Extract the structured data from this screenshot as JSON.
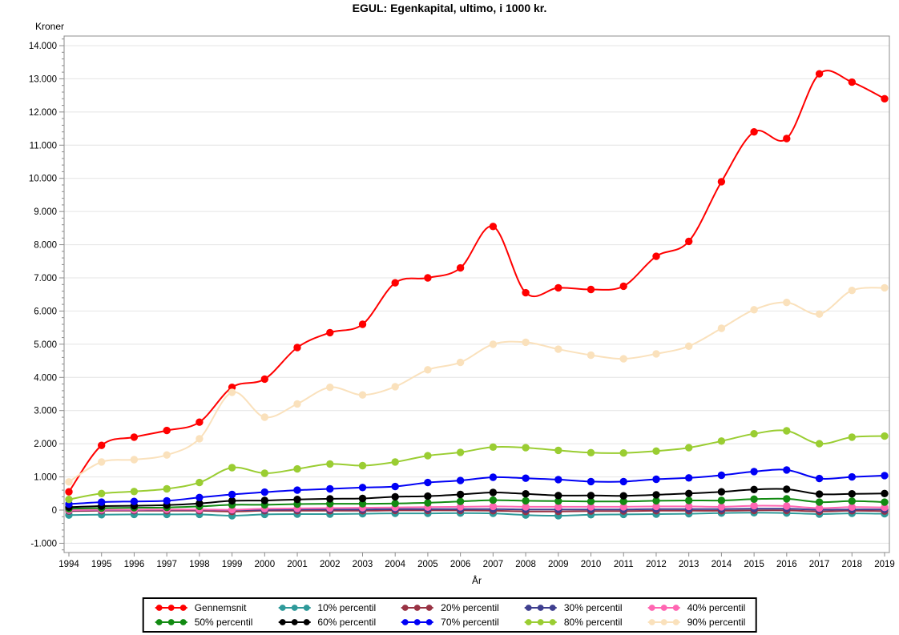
{
  "title": "EGUL: Egenkapital, ultimo, i 1000 kr.",
  "colors": {
    "background": "#FFFFFF",
    "grid": "#E4E4E4",
    "frame": "#8C8C8C",
    "tick": "#8C8C8C",
    "legend_border": "#000000",
    "text": "#000000"
  },
  "chart_data": {
    "type": "line",
    "title": "EGUL: Egenkapital, ultimo, i 1000 kr.",
    "xlabel": "År",
    "ylabel": "Kroner",
    "x": [
      1994,
      1995,
      1996,
      1997,
      1998,
      1999,
      2000,
      2001,
      2002,
      2003,
      2004,
      2005,
      2006,
      2007,
      2008,
      2009,
      2010,
      2011,
      2012,
      2013,
      2014,
      2015,
      2016,
      2017,
      2018,
      2019
    ],
    "ylim": [
      -1000,
      14000
    ],
    "ytick_step": 1000,
    "ytick_minor_step": 200,
    "ytick_labels": [
      "-1.000",
      "0",
      "1.000",
      "2.000",
      "3.000",
      "4.000",
      "5.000",
      "6.000",
      "7.000",
      "8.000",
      "9.000",
      "10.000",
      "11.000",
      "12.000",
      "13.000",
      "14.000"
    ],
    "grid": true,
    "legend_position": "bottom",
    "legend_columns": 5,
    "marker": "dot",
    "series": [
      {
        "name": "Gennemsnit",
        "color": "#FF0000",
        "values": [
          550,
          1950,
          2200,
          2400,
          2650,
          3700,
          3950,
          4900,
          5350,
          5600,
          6850,
          7000,
          7300,
          8550,
          6550,
          6700,
          6650,
          6750,
          7650,
          8100,
          9900,
          11400,
          11200,
          13150,
          12900,
          12400
        ]
      },
      {
        "name": "10% percentil",
        "color": "#2F9A9A",
        "values": [
          -150,
          -140,
          -130,
          -130,
          -130,
          -170,
          -130,
          -120,
          -120,
          -110,
          -100,
          -100,
          -90,
          -100,
          -150,
          -170,
          -140,
          -130,
          -120,
          -110,
          -90,
          -80,
          -90,
          -120,
          -100,
          -110
        ]
      },
      {
        "name": "20% percentil",
        "color": "#993344",
        "values": [
          -30,
          -20,
          -20,
          -20,
          -20,
          -40,
          -20,
          -20,
          -20,
          -20,
          -10,
          -10,
          -10,
          -20,
          -40,
          -40,
          -30,
          -30,
          -20,
          -20,
          -20,
          -10,
          -10,
          -40,
          -20,
          -30
        ]
      },
      {
        "name": "30% percentil",
        "color": "#3F3F8F",
        "values": [
          -10,
          0,
          0,
          10,
          10,
          0,
          10,
          20,
          20,
          20,
          30,
          30,
          30,
          30,
          20,
          20,
          20,
          20,
          30,
          30,
          30,
          40,
          40,
          10,
          20,
          20
        ]
      },
      {
        "name": "40% percentil",
        "color": "#FF66B2",
        "values": [
          0,
          10,
          10,
          20,
          20,
          10,
          40,
          50,
          60,
          70,
          80,
          90,
          100,
          110,
          100,
          100,
          100,
          100,
          110,
          110,
          100,
          130,
          120,
          60,
          90,
          80
        ]
      },
      {
        "name": "50% percentil",
        "color": "#128A12",
        "values": [
          40,
          60,
          70,
          80,
          110,
          160,
          160,
          180,
          190,
          190,
          200,
          220,
          260,
          300,
          280,
          270,
          260,
          260,
          280,
          290,
          290,
          330,
          340,
          240,
          270,
          240
        ]
      },
      {
        "name": "60% percentil",
        "color": "#000000",
        "values": [
          90,
          120,
          130,
          150,
          200,
          280,
          290,
          320,
          340,
          350,
          400,
          420,
          470,
          530,
          490,
          440,
          440,
          430,
          460,
          500,
          550,
          620,
          630,
          480,
          490,
          500
        ]
      },
      {
        "name": "70% percentil",
        "color": "#0000F5",
        "values": [
          180,
          240,
          260,
          280,
          380,
          470,
          540,
          600,
          640,
          680,
          710,
          830,
          890,
          990,
          960,
          920,
          860,
          860,
          930,
          970,
          1050,
          1160,
          1210,
          950,
          1000,
          1040
        ]
      },
      {
        "name": "80% percentil",
        "color": "#9ACD32",
        "values": [
          320,
          500,
          560,
          640,
          830,
          1280,
          1110,
          1240,
          1390,
          1340,
          1450,
          1640,
          1740,
          1900,
          1880,
          1800,
          1730,
          1720,
          1780,
          1880,
          2080,
          2300,
          2390,
          2000,
          2200,
          2230
        ]
      },
      {
        "name": "90% percentil",
        "color": "#FAE1BC",
        "values": [
          850,
          1450,
          1520,
          1660,
          2150,
          3550,
          2800,
          3200,
          3700,
          3470,
          3720,
          4230,
          4450,
          5000,
          5060,
          4850,
          4670,
          4560,
          4710,
          4940,
          5480,
          6040,
          6260,
          5910,
          6620,
          6700
        ]
      }
    ]
  }
}
